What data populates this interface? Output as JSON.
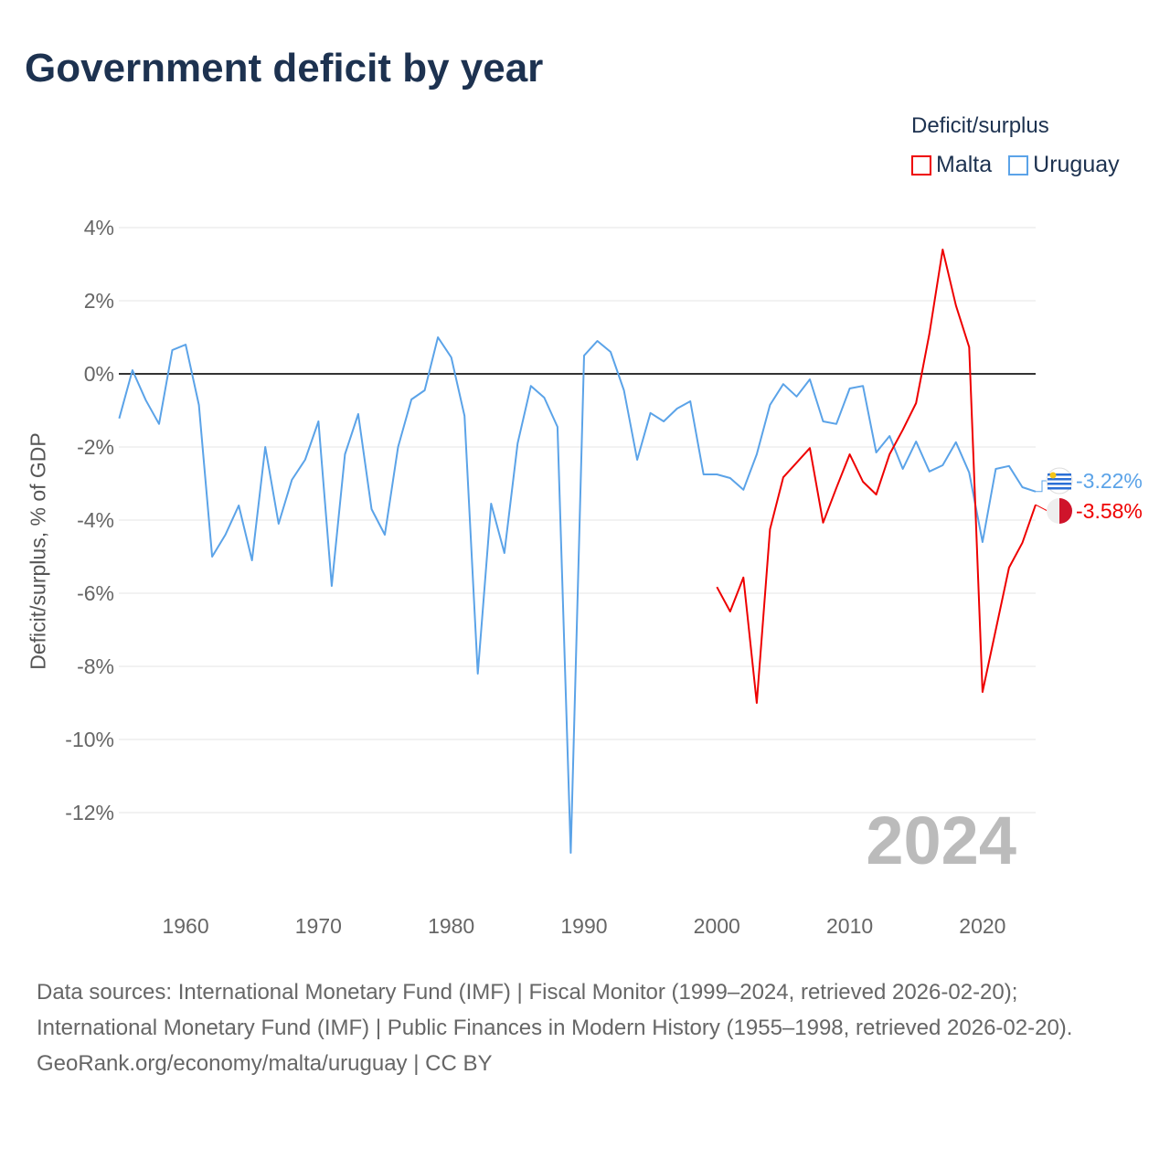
{
  "title": "Government deficit by year",
  "legend": {
    "title": "Deficit/surplus",
    "items": [
      {
        "name": "Malta",
        "color": "#ee0000"
      },
      {
        "name": "Uruguay",
        "color": "#5ba3e8"
      }
    ]
  },
  "watermark_year": "2024",
  "footer": {
    "sources": "Data sources: International Monetary Fund (IMF) | Fiscal Monitor (1999–2024, retrieved 2026-02-20); International Monetary Fund (IMF) | Public Finances in Modern History (1955–1998, retrieved 2026-02-20).",
    "credit": "GeoRank.org/economy/malta/uruguay | CC BY"
  },
  "chart_data": {
    "type": "line",
    "title": "Government deficit by year",
    "xlabel": "",
    "ylabel": "Deficit/surplus, % of GDP",
    "xlim": [
      1955,
      2024
    ],
    "ylim": [
      -13.5,
      4
    ],
    "xticks": [
      1960,
      1970,
      1980,
      1990,
      2000,
      2010,
      2020
    ],
    "yticks": [
      4,
      2,
      0,
      -2,
      -4,
      -6,
      -8,
      -10,
      -12
    ],
    "ytick_labels": [
      "4%",
      "2%",
      "0%",
      "-2%",
      "-4%",
      "-6%",
      "-8%",
      "-10%",
      "-12%"
    ],
    "grid": true,
    "legend_position": "top-right",
    "series": [
      {
        "name": "Uruguay",
        "color": "#5ba3e8",
        "end_label": "-3.22%",
        "start_year": 1955,
        "values": [
          -1.22,
          0.1,
          -0.72,
          -1.37,
          0.65,
          0.8,
          -0.85,
          -5.0,
          -4.4,
          -3.6,
          -5.1,
          -2.0,
          -4.1,
          -2.9,
          -2.35,
          -1.3,
          -5.8,
          -2.2,
          -1.1,
          -3.7,
          -4.4,
          -2.0,
          -0.7,
          -0.45,
          1.0,
          0.45,
          -1.15,
          -8.2,
          -3.55,
          -4.9,
          -1.9,
          -0.33,
          -0.65,
          -1.45,
          -13.1,
          0.5,
          0.9,
          0.6,
          -0.45,
          -2.35,
          -1.07,
          -1.3,
          -0.95,
          -0.75,
          -2.75,
          -2.75,
          -2.85,
          -3.17,
          -2.2,
          -0.85,
          -0.28,
          -0.62,
          -0.15,
          -1.3,
          -1.37,
          -0.4,
          -0.33,
          -2.15,
          -1.7,
          -2.6,
          -1.85,
          -2.67,
          -2.5,
          -1.87,
          -2.7,
          -4.6,
          -2.6,
          -2.52,
          -3.1,
          -3.22
        ]
      },
      {
        "name": "Malta",
        "color": "#ee0000",
        "end_label": "-3.58%",
        "start_year": 2000,
        "values": [
          -5.83,
          -6.5,
          -5.57,
          -9.0,
          -4.25,
          -2.83,
          -2.43,
          -2.03,
          -4.07,
          -3.12,
          -2.2,
          -2.95,
          -3.3,
          -2.2,
          -1.53,
          -0.8,
          1.1,
          3.4,
          1.87,
          0.73,
          -8.7,
          -7.0,
          -5.3,
          -4.62,
          -3.58
        ]
      }
    ]
  }
}
